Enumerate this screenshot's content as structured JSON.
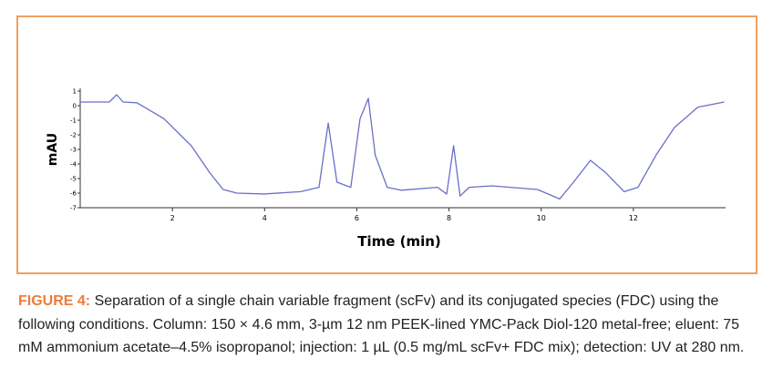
{
  "chart_data": {
    "type": "line",
    "xlabel": "Time (min)",
    "ylabel": "mAU",
    "x": [
      0,
      0.63,
      0.79,
      0.93,
      1.23,
      1.82,
      2.41,
      2.81,
      3.1,
      3.4,
      3.99,
      4.78,
      5.18,
      5.38,
      5.57,
      5.87,
      6.07,
      6.25,
      6.4,
      6.66,
      6.96,
      7.75,
      7.95,
      8.1,
      8.24,
      8.44,
      8.93,
      9.92,
      10.4,
      10.7,
      11.07,
      11.4,
      11.8,
      12.1,
      12.49,
      12.89,
      13.4,
      13.97
    ],
    "series": [
      {
        "color": "#6a6fc8",
        "values": [
          0.25,
          0.25,
          0.75,
          0.25,
          0.2,
          -0.9,
          -2.75,
          -4.6,
          -5.75,
          -6,
          -6.06,
          -5.9,
          -5.6,
          -1.2,
          -5.25,
          -5.6,
          -0.9,
          0.5,
          -3.4,
          -5.6,
          -5.8,
          -5.6,
          -6.06,
          -2.75,
          -6.2,
          -5.6,
          -5.5,
          -5.75,
          -6.4,
          -5.25,
          -3.75,
          -4.6,
          -5.9,
          -5.6,
          -3.4,
          -1.5,
          -0.1,
          0.25
        ]
      }
    ],
    "xlim": [
      0,
      14
    ],
    "xticks": [
      2,
      4,
      6,
      8,
      10,
      12
    ],
    "ylim": [
      -7,
      1
    ],
    "yticks": [
      -7,
      -6,
      -5,
      -4,
      -3,
      -2,
      -1,
      0,
      1
    ]
  },
  "caption": {
    "label": "FIGURE 4:",
    "text": "Separation of a single chain variable fragment (scFv) and its conjugated species (FDC) using the following conditions. Column: 150 × 4.6 mm, 3-µm 12 nm PEEK-lined YMC-Pack Diol-120 metal-free; eluent: 75 mM ammonium acetate–4.5% isopropanol; injection: 1 µL (0.5 mg/mL scFv+ FDC mix); detection: UV at 280 nm."
  }
}
